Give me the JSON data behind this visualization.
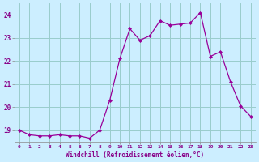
{
  "x": [
    0,
    1,
    2,
    3,
    4,
    5,
    6,
    7,
    8,
    9,
    10,
    11,
    12,
    13,
    14,
    15,
    16,
    17,
    18,
    19,
    20,
    21,
    22,
    23
  ],
  "y": [
    19.0,
    18.8,
    18.75,
    18.75,
    18.8,
    18.75,
    18.75,
    18.65,
    19.0,
    20.3,
    22.1,
    23.4,
    22.9,
    23.1,
    23.75,
    23.55,
    23.6,
    23.65,
    24.1,
    22.2,
    22.4,
    21.1,
    20.05,
    19.6
  ],
  "line_color": "#990099",
  "marker_color": "#990099",
  "bg_color": "#cceeff",
  "grid_color": "#99cccc",
  "xlabel": "Windchill (Refroidissement éolien,°C)",
  "xlabel_color": "#880088",
  "tick_color": "#880088",
  "ylim": [
    18.5,
    24.5
  ],
  "yticks": [
    19,
    20,
    21,
    22,
    23,
    24
  ],
  "xlim": [
    -0.5,
    23.5
  ],
  "xticks": [
    0,
    1,
    2,
    3,
    4,
    5,
    6,
    7,
    8,
    9,
    10,
    11,
    12,
    13,
    14,
    15,
    16,
    17,
    18,
    19,
    20,
    21,
    22,
    23
  ],
  "xtick_labels": [
    "0",
    "1",
    "2",
    "3",
    "4",
    "5",
    "6",
    "7",
    "8",
    "9",
    "10",
    "11",
    "12",
    "13",
    "14",
    "15",
    "16",
    "17",
    "18",
    "19",
    "20",
    "21",
    "22",
    "23"
  ]
}
